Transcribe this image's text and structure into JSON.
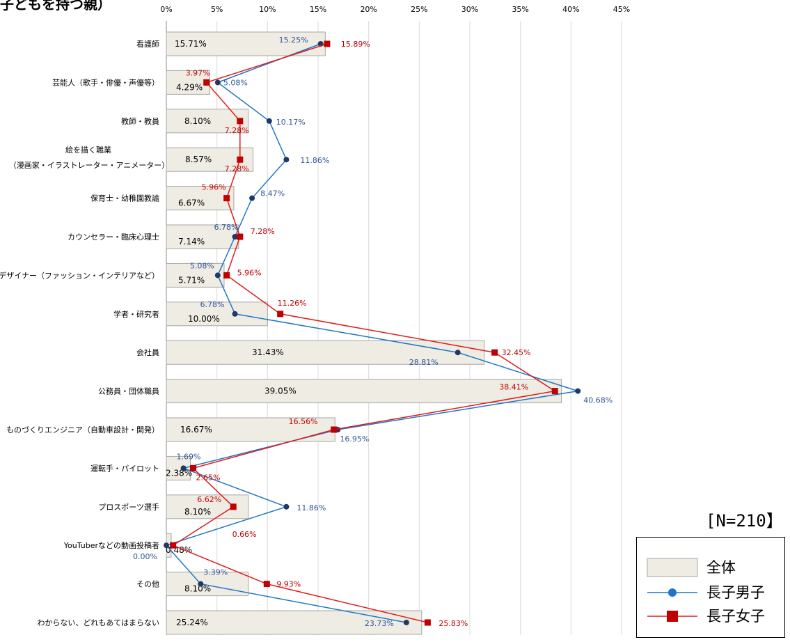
{
  "title": "子どもを持つ親）",
  "n_label": "[N=210】",
  "legend": [
    {
      "name": "全体",
      "kind": "bar",
      "color": "#efece3",
      "border": "#a6a6a6"
    },
    {
      "name": "長子男子",
      "kind": "line-circle",
      "color": "#1f77c4",
      "marker_color": "#1f77c4"
    },
    {
      "name": "長子女子",
      "kind": "line-square",
      "color": "#e01b1b",
      "marker_color": "#c00000"
    }
  ],
  "chart_data": {
    "type": "bar",
    "orientation": "horizontal",
    "xlim": [
      0,
      45
    ],
    "x_ticks": [
      "0%",
      "5%",
      "10%",
      "15%",
      "20%",
      "25%",
      "30%",
      "35%",
      "40%",
      "45%"
    ],
    "grid": true,
    "legend_position": "bottom-right",
    "categories": [
      "看護師",
      "芸能人（歌手・俳優・声優等）",
      "教師・教員",
      "絵を描く職業\n（漫画家・イラストレーター・アニメーター）",
      "保育士・幼稚園教諭",
      "カウンセラー・臨床心理士",
      "デザイナー（ファッション・インテリアなど）",
      "学者・研究者",
      "会社員",
      "公務員・団体職員",
      "ものづくりエンジニア（自動車設計・開発）",
      "運転手・パイロット",
      "プロスポーツ選手",
      "YouTuberなどの動画投稿者",
      "その他",
      "わからない、どれもあてはまらない"
    ],
    "series": [
      {
        "name": "全体",
        "kind": "bar",
        "color": "#efece3",
        "values": [
          15.71,
          4.29,
          8.1,
          8.57,
          6.67,
          7.14,
          5.71,
          10.0,
          31.43,
          39.05,
          16.67,
          2.38,
          8.1,
          0.48,
          8.1,
          25.24
        ],
        "labels": [
          "15.71%",
          "4.29%",
          "8.10%",
          "8.57%",
          "6.67%",
          "7.14%",
          "5.71%",
          "10.00%",
          "31.43%",
          "39.05%",
          "16.67%",
          "2.38%",
          "8.10%",
          "0.48%",
          "8.10%",
          "25.24%"
        ]
      },
      {
        "name": "長子男子",
        "kind": "line",
        "marker": "circle",
        "color": "#1f77c4",
        "label_color": "#2f5597",
        "values": [
          15.25,
          5.08,
          10.17,
          11.86,
          8.47,
          6.78,
          5.08,
          6.78,
          28.81,
          40.68,
          16.95,
          1.69,
          11.86,
          0.0,
          3.39,
          23.73
        ],
        "labels": [
          "15.25%",
          "5.08%",
          "10.17%",
          "11.86%",
          "8.47%",
          "6.78%",
          "5.08%",
          "6.78%",
          "28.81%",
          "40.68%",
          "16.95%",
          "1.69%",
          "11.86%",
          "0.00%",
          "3.39%",
          "23.73%"
        ]
      },
      {
        "name": "長子女子",
        "kind": "line",
        "marker": "square",
        "color": "#e01b1b",
        "label_color": "#c00000",
        "values": [
          15.89,
          3.97,
          7.28,
          7.28,
          5.96,
          7.28,
          5.96,
          11.26,
          32.45,
          38.41,
          16.56,
          2.65,
          6.62,
          0.66,
          9.93,
          25.83
        ],
        "labels": [
          "15.89%",
          "3.97%",
          "7.28%",
          "7.28%",
          "5.96%",
          "7.28%",
          "5.96%",
          "11.26%",
          "32.45%",
          "38.41%",
          "16.56%",
          "2.65%",
          "6.62%",
          "0.66%",
          "9.93%",
          "25.83%"
        ]
      }
    ]
  }
}
